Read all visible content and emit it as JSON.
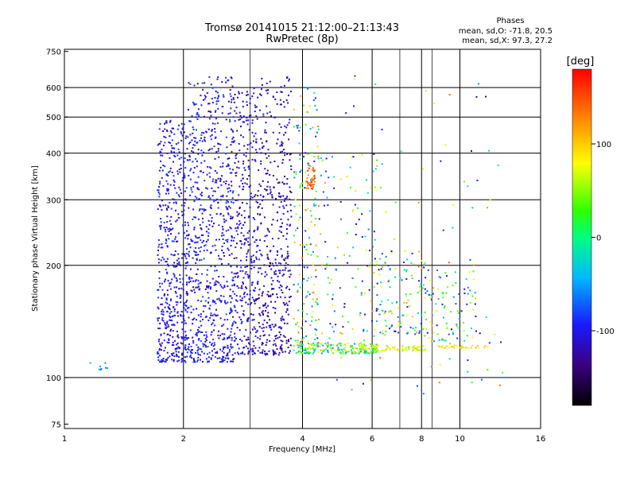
{
  "chart_data": {
    "type": "scatter",
    "title": "Tromsø 20141015 21:12:00–21:13:43",
    "subtitle": "RwPretec (8p)",
    "xlabel": "Frequency [MHz]",
    "ylabel": "Stationary phase Virtual Height [km]",
    "x_scale": "log2",
    "y_scale": "log",
    "xlim": [
      1,
      16
    ],
    "ylim": [
      73,
      760
    ],
    "x_ticks": [
      1,
      2,
      4,
      6,
      8,
      10,
      16
    ],
    "x_grid": [
      2,
      4,
      6,
      8,
      10
    ],
    "x_minor_ticks": [
      2.95,
      7.05,
      8.5
    ],
    "y_ticks": [
      75,
      100,
      200,
      300,
      400,
      500,
      600,
      750
    ],
    "y_grid": [
      100,
      200,
      300,
      400,
      500,
      600
    ],
    "grid": true,
    "stats": {
      "heading": "Phases",
      "line_o": "mean, sd,O: -71.8, 20.5",
      "line_x": "mean, sd,X:  97.3, 27.2"
    },
    "colorbar": {
      "label": "[deg]",
      "range": [
        -180,
        180
      ],
      "ticks": [
        100,
        0,
        -100
      ],
      "tick_labels": [
        "100",
        "0",
        "-100"
      ],
      "colormap": "rainbow"
    },
    "clusters": [
      {
        "x": [
          1.72,
          2.05
        ],
        "y": [
          110,
          490
        ],
        "n": 520,
        "phase": [
          -125,
          -80
        ]
      },
      {
        "x": [
          2.05,
          2.7
        ],
        "y": [
          110,
          640
        ],
        "n": 750,
        "phase": [
          -130,
          -75
        ]
      },
      {
        "x": [
          2.7,
          3.1
        ],
        "y": [
          115,
          600
        ],
        "n": 340,
        "phase": [
          -135,
          -90
        ]
      },
      {
        "x": [
          3.1,
          3.75
        ],
        "y": [
          115,
          640
        ],
        "n": 430,
        "phase": [
          -145,
          -100
        ]
      },
      {
        "x": [
          3.8,
          4.4
        ],
        "y": [
          120,
          600
        ],
        "n": 170,
        "phase": [
          -120,
          140
        ]
      },
      {
        "x": [
          4.1,
          4.3
        ],
        "y": [
          320,
          380
        ],
        "n": 40,
        "phase": [
          120,
          170
        ]
      },
      {
        "x": [
          3.8,
          6.2
        ],
        "y": [
          116,
          124
        ],
        "n": 190,
        "phase": [
          -60,
          110
        ]
      },
      {
        "x": [
          5.6,
          8.2
        ],
        "y": [
          118,
          122
        ],
        "n": 80,
        "phase": [
          40,
          100
        ]
      },
      {
        "x": [
          4.4,
          6.2
        ],
        "y": [
          130,
          420
        ],
        "n": 110,
        "phase": [
          -140,
          120
        ]
      },
      {
        "x": [
          6.2,
          8.5
        ],
        "y": [
          130,
          220
        ],
        "n": 110,
        "phase": [
          -130,
          120
        ]
      },
      {
        "x": [
          8.0,
          11.0
        ],
        "y": [
          125,
          210
        ],
        "n": 90,
        "phase": [
          -140,
          120
        ]
      },
      {
        "x": [
          8.8,
          11.8
        ],
        "y": [
          120,
          122
        ],
        "n": 30,
        "phase": [
          60,
          110
        ]
      },
      {
        "x": [
          4.5,
          13.0
        ],
        "y": [
          90,
          650
        ],
        "n": 90,
        "phase": [
          -150,
          150
        ]
      },
      {
        "x": [
          1.15,
          1.3
        ],
        "y": [
          105,
          110
        ],
        "n": 8,
        "phase": [
          -70,
          -40
        ]
      }
    ],
    "phase_cluster_note": "points are colored by phase in degrees"
  }
}
